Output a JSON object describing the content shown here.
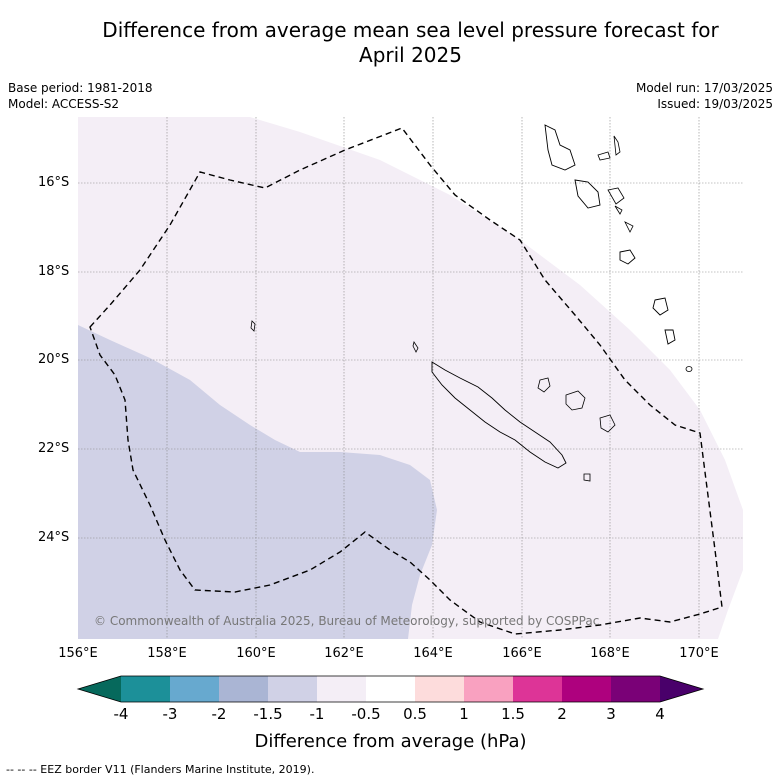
{
  "title": {
    "line1": "Difference from average mean sea level pressure forecast for",
    "line2": "April 2025"
  },
  "meta": {
    "base_period": "Base period: 1981-2018",
    "model": "Model: ACCESS-S2",
    "model_run": "Model run: 17/03/2025",
    "issued": "Issued: 19/03/2025"
  },
  "map": {
    "lat_labels": [
      "16°S",
      "18°S",
      "20°S",
      "22°S",
      "24°S"
    ],
    "lon_labels": [
      "156°E",
      "158°E",
      "160°E",
      "162°E",
      "164°E",
      "166°E",
      "168°E",
      "170°E"
    ],
    "copyright": "© Commonwealth of Australia 2025, Bureau of Meteorology, supported by COSPPac",
    "colors": {
      "light_pink": "#f4eef6",
      "light_blue": "#d0d1e6"
    }
  },
  "colorbar": {
    "ticks": [
      "-4",
      "-3",
      "-2",
      "-1.5",
      "-1",
      "-0.5",
      "0.5",
      "1",
      "1.5",
      "2",
      "3",
      "4"
    ],
    "colors": [
      "#06695c",
      "#1c9099",
      "#67a9cf",
      "#aab5d4",
      "#d0d1e6",
      "#f4eef6",
      "#ffffff",
      "#fddcdc",
      "#f9a1c0",
      "#dd3497",
      "#ae017e",
      "#7a0177",
      "#49006a"
    ],
    "title": "Difference from average (hPa)"
  },
  "eez_note": "--  --  -- EEZ border V11 (Flanders Marine Institute, 2019)."
}
